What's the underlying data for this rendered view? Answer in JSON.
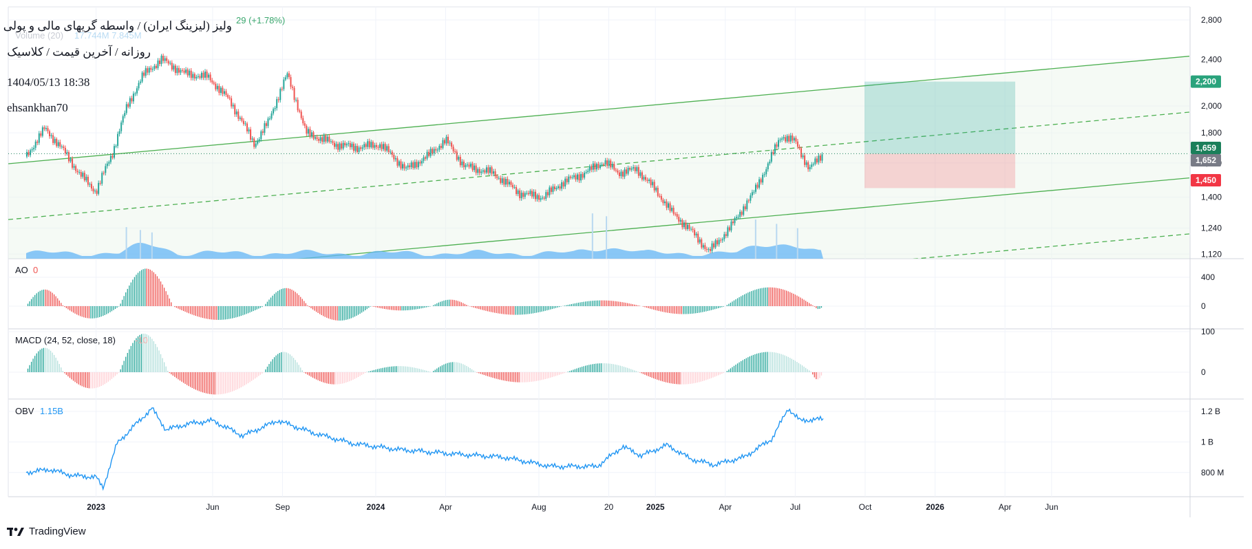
{
  "header": {
    "title": "ولیز (لیزینگ ایران) / واسطه گریهای مالی و پولی",
    "subtitle": "روزانه / آخرین قیمت / کلاسیک",
    "datetime": "1404/05/13 18:38",
    "author": "ehsankhan70",
    "change_text": "29 (+1.78%)",
    "volume_label": "Volume (20)",
    "volume_values": "17.744M  7.845M"
  },
  "indicators": {
    "ao_label": "AO",
    "ao_value": "0",
    "macd_label": "MACD (24, 52, close, 18)",
    "macd_value": "-10",
    "obv_label": "OBV",
    "obv_value": "1.15B"
  },
  "branding": {
    "name": "TradingView",
    "icon": "tradingview-logo-icon"
  },
  "colors": {
    "up": "#26a69a",
    "down": "#ef5350",
    "channel": "#4caf50",
    "target": "#2aa37c",
    "stop": "#f23645",
    "current": "#1b7f5a",
    "prev": "#787b86",
    "obv": "#2196f3",
    "volume": "#64b5f6"
  },
  "chart_data": {
    "type": "candlestick",
    "x_axis": {
      "labels": [
        "2023",
        "Jun",
        "Sep",
        "2024",
        "Apr",
        "Aug",
        "20",
        "2025",
        "Apr",
        "Jul",
        "Oct",
        "2026",
        "Apr",
        "Jun"
      ],
      "bold": [
        "2023",
        "2024",
        "2025",
        "2026"
      ],
      "months": [
        3,
        8,
        11,
        15,
        18,
        22,
        25,
        27,
        30,
        33,
        36,
        39,
        42,
        44
      ]
    },
    "price_axis": {
      "ticks": [
        1120,
        1240,
        1400,
        1600,
        1800,
        2000,
        2400,
        2800
      ],
      "labels": [
        "1,120",
        "1,240",
        "1,400",
        "1,600",
        "1,800",
        "2,000",
        "2,400",
        "2,800"
      ],
      "scale": "log"
    },
    "price_tags": [
      {
        "value": 2200,
        "label": "2,200",
        "kind": "target"
      },
      {
        "value": 1659,
        "label": "1,659",
        "kind": "current"
      },
      {
        "value": 1652,
        "label": "1,652",
        "kind": "prev"
      },
      {
        "value": 1450,
        "label": "1,450",
        "kind": "stop"
      }
    ],
    "position": {
      "entry": 1659,
      "target": 2200,
      "stop": 1450
    },
    "price_series": [
      {
        "m": 0,
        "p": 1640
      },
      {
        "m": 0.8,
        "p": 1830
      },
      {
        "m": 1.5,
        "p": 1700
      },
      {
        "m": 2.3,
        "p": 1530
      },
      {
        "m": 3,
        "p": 1430
      },
      {
        "m": 3.7,
        "p": 1660
      },
      {
        "m": 4.3,
        "p": 1980
      },
      {
        "m": 5,
        "p": 2250
      },
      {
        "m": 5.8,
        "p": 2400
      },
      {
        "m": 6.8,
        "p": 2270
      },
      {
        "m": 7.8,
        "p": 2240
      },
      {
        "m": 8.7,
        "p": 2050
      },
      {
        "m": 9.8,
        "p": 1720
      },
      {
        "m": 10.4,
        "p": 1880
      },
      {
        "m": 11.2,
        "p": 2260
      },
      {
        "m": 12,
        "p": 1800
      },
      {
        "m": 13.3,
        "p": 1720
      },
      {
        "m": 14.2,
        "p": 1700
      },
      {
        "m": 15.2,
        "p": 1720
      },
      {
        "m": 16.3,
        "p": 1560
      },
      {
        "m": 17.2,
        "p": 1640
      },
      {
        "m": 18,
        "p": 1750
      },
      {
        "m": 18.8,
        "p": 1580
      },
      {
        "m": 20,
        "p": 1540
      },
      {
        "m": 21.2,
        "p": 1420
      },
      {
        "m": 22.2,
        "p": 1400
      },
      {
        "m": 23,
        "p": 1480
      },
      {
        "m": 24,
        "p": 1540
      },
      {
        "m": 24.8,
        "p": 1610
      },
      {
        "m": 25.4,
        "p": 1540
      },
      {
        "m": 26.2,
        "p": 1560
      },
      {
        "m": 27,
        "p": 1440
      },
      {
        "m": 27.7,
        "p": 1320
      },
      {
        "m": 28.5,
        "p": 1230
      },
      {
        "m": 29.3,
        "p": 1130
      },
      {
        "m": 30.2,
        "p": 1240
      },
      {
        "m": 31.2,
        "p": 1420
      },
      {
        "m": 31.8,
        "p": 1580
      },
      {
        "m": 32.4,
        "p": 1780
      },
      {
        "m": 33,
        "p": 1740
      },
      {
        "m": 33.6,
        "p": 1560
      },
      {
        "m": 34.2,
        "p": 1659
      }
    ],
    "channel_lines": [
      {
        "style": "solid",
        "p0": 1595,
        "p1": 2430
      },
      {
        "style": "dashed",
        "p0": 1282,
        "p1": 1952
      },
      {
        "style": "solid",
        "p0": 991,
        "p1": 1509
      },
      {
        "style": "dashed",
        "p0": 796,
        "p1": 1212
      },
      {
        "style": "solid",
        "p0": 615,
        "p1": 937
      }
    ],
    "obv_axis": {
      "labels": [
        "1.2 B",
        "1 B",
        "800 M"
      ],
      "values": [
        1.2,
        1.0,
        0.8
      ]
    },
    "obv_series": [
      {
        "m": 0,
        "v": 0.8
      },
      {
        "m": 1,
        "v": 0.82
      },
      {
        "m": 2,
        "v": 0.78
      },
      {
        "m": 3,
        "v": 0.77
      },
      {
        "m": 3.3,
        "v": 0.7
      },
      {
        "m": 3.9,
        "v": 0.99
      },
      {
        "m": 4.6,
        "v": 1.1
      },
      {
        "m": 5.4,
        "v": 1.22
      },
      {
        "m": 6,
        "v": 1.08
      },
      {
        "m": 7,
        "v": 1.12
      },
      {
        "m": 8,
        "v": 1.14
      },
      {
        "m": 9.3,
        "v": 1.04
      },
      {
        "m": 10.8,
        "v": 1.14
      },
      {
        "m": 12.3,
        "v": 1.06
      },
      {
        "m": 14,
        "v": 0.99
      },
      {
        "m": 16,
        "v": 0.95
      },
      {
        "m": 18.5,
        "v": 0.92
      },
      {
        "m": 20.5,
        "v": 0.9
      },
      {
        "m": 22.5,
        "v": 0.84
      },
      {
        "m": 24.5,
        "v": 0.84
      },
      {
        "m": 25.6,
        "v": 0.97
      },
      {
        "m": 26.4,
        "v": 0.91
      },
      {
        "m": 27.5,
        "v": 0.98
      },
      {
        "m": 28.5,
        "v": 0.89
      },
      {
        "m": 29.5,
        "v": 0.85
      },
      {
        "m": 30.8,
        "v": 0.9
      },
      {
        "m": 32,
        "v": 1.02
      },
      {
        "m": 32.7,
        "v": 1.22
      },
      {
        "m": 33.2,
        "v": 1.14
      },
      {
        "m": 34.2,
        "v": 1.15
      }
    ],
    "ao_axis": {
      "labels": [
        "400",
        "0"
      ],
      "values": [
        400,
        0
      ]
    },
    "macd_axis": {
      "labels": [
        "100",
        "0"
      ],
      "values": [
        100,
        0
      ]
    },
    "ao_waves": [
      {
        "m0": 0,
        "m1": 1.6,
        "a": 230
      },
      {
        "m0": 1.6,
        "m1": 4,
        "a": -170
      },
      {
        "m0": 4,
        "m1": 6.3,
        "a": 520
      },
      {
        "m0": 6.3,
        "m1": 10.2,
        "a": -190
      },
      {
        "m0": 10.2,
        "m1": 12.1,
        "a": 250
      },
      {
        "m0": 12.1,
        "m1": 14.8,
        "a": -200
      },
      {
        "m0": 14.8,
        "m1": 17.4,
        "a": -60
      },
      {
        "m0": 17.4,
        "m1": 19,
        "a": 90
      },
      {
        "m0": 19,
        "m1": 23,
        "a": -120
      },
      {
        "m0": 23,
        "m1": 26.4,
        "a": 80
      },
      {
        "m0": 26.4,
        "m1": 30,
        "a": -110
      },
      {
        "m0": 30,
        "m1": 33.8,
        "a": 260
      },
      {
        "m0": 33.8,
        "m1": 34.2,
        "a": -40
      }
    ],
    "macd_waves": [
      {
        "m0": 0,
        "m1": 1.6,
        "a": 60
      },
      {
        "m0": 1.6,
        "m1": 4,
        "a": -40
      },
      {
        "m0": 4,
        "m1": 6.1,
        "a": 95
      },
      {
        "m0": 6.1,
        "m1": 10.2,
        "a": -55
      },
      {
        "m0": 10.2,
        "m1": 11.9,
        "a": 50
      },
      {
        "m0": 11.9,
        "m1": 14.6,
        "a": -30
      },
      {
        "m0": 14.6,
        "m1": 17.4,
        "a": 15
      },
      {
        "m0": 17.4,
        "m1": 19.3,
        "a": 25
      },
      {
        "m0": 19.3,
        "m1": 23.2,
        "a": -25
      },
      {
        "m0": 23.2,
        "m1": 26.3,
        "a": 22
      },
      {
        "m0": 26.3,
        "m1": 30,
        "a": -30
      },
      {
        "m0": 30,
        "m1": 33.7,
        "a": 50
      },
      {
        "m0": 33.7,
        "m1": 34.2,
        "a": -18
      }
    ]
  }
}
